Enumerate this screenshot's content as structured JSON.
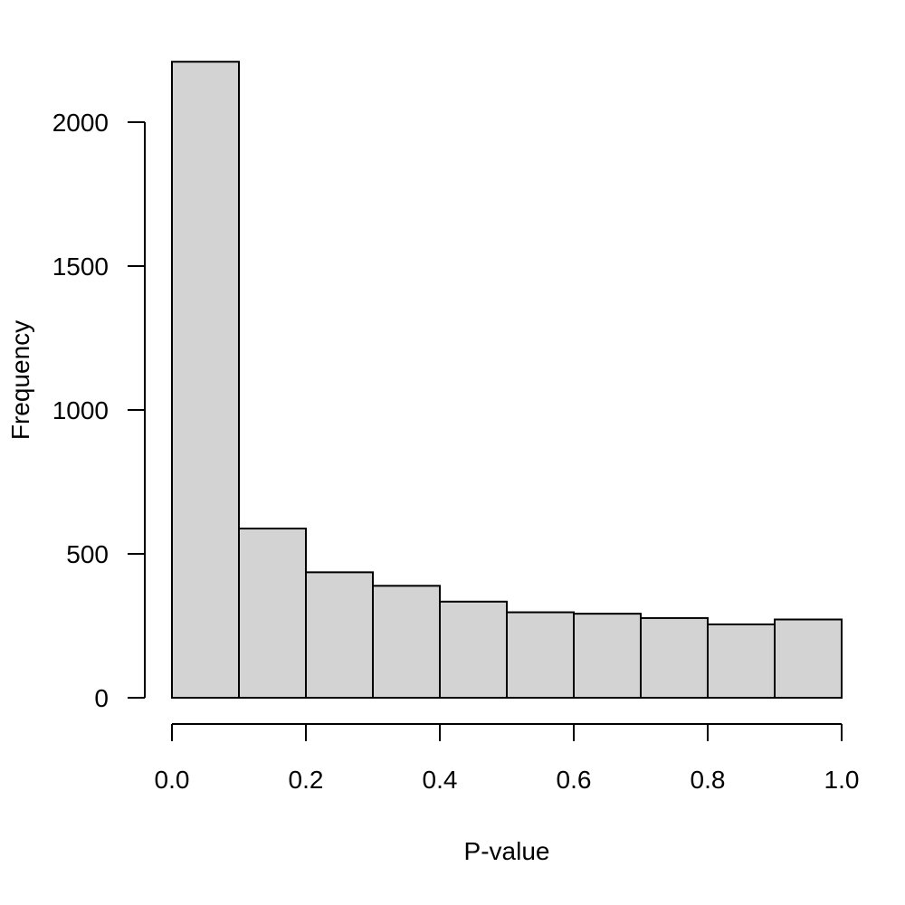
{
  "chart_data": {
    "type": "bar",
    "title": "",
    "xlabel": "P-value",
    "ylabel": "Frequency",
    "bins": [
      {
        "x0": 0.0,
        "x1": 0.1,
        "value": 2210
      },
      {
        "x0": 0.1,
        "x1": 0.2,
        "value": 588
      },
      {
        "x0": 0.2,
        "x1": 0.3,
        "value": 436
      },
      {
        "x0": 0.3,
        "x1": 0.4,
        "value": 389
      },
      {
        "x0": 0.4,
        "x1": 0.5,
        "value": 334
      },
      {
        "x0": 0.5,
        "x1": 0.6,
        "value": 297
      },
      {
        "x0": 0.6,
        "x1": 0.7,
        "value": 292
      },
      {
        "x0": 0.7,
        "x1": 0.8,
        "value": 277
      },
      {
        "x0": 0.8,
        "x1": 0.9,
        "value": 255
      },
      {
        "x0": 0.9,
        "x1": 1.0,
        "value": 272
      }
    ],
    "xlim": [
      0,
      1
    ],
    "ylim": [
      0,
      2210
    ],
    "xticks": [
      {
        "value": 0.0,
        "label": "0.0"
      },
      {
        "value": 0.2,
        "label": "0.2"
      },
      {
        "value": 0.4,
        "label": "0.4"
      },
      {
        "value": 0.6,
        "label": "0.6"
      },
      {
        "value": 0.8,
        "label": "0.8"
      },
      {
        "value": 1.0,
        "label": "1.0"
      }
    ],
    "yticks": [
      {
        "value": 0,
        "label": "0"
      },
      {
        "value": 500,
        "label": "500"
      },
      {
        "value": 1000,
        "label": "1000"
      },
      {
        "value": 1500,
        "label": "1500"
      },
      {
        "value": 2000,
        "label": "2000"
      }
    ],
    "grid": false,
    "colors": {
      "bar_fill": "#d3d3d3",
      "bar_stroke": "#000000"
    }
  }
}
